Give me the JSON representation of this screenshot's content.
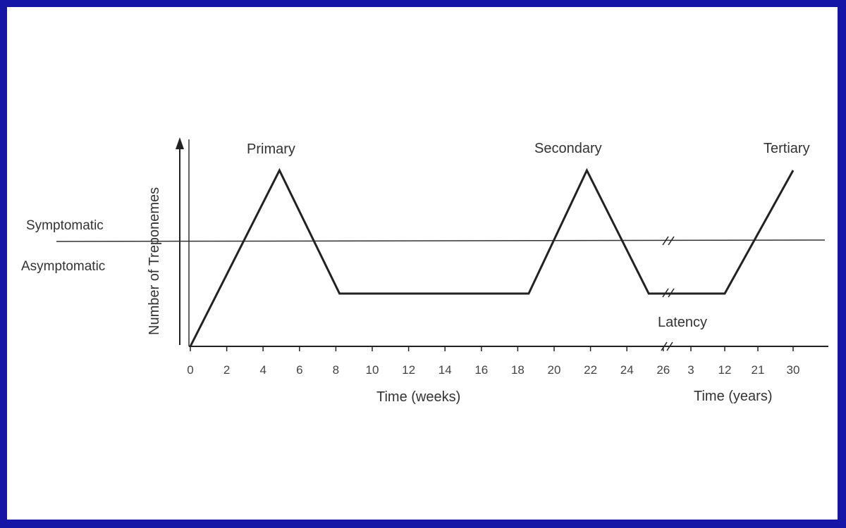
{
  "chart_data": {
    "type": "line",
    "title": "",
    "ylabel": "Number of Treponemes",
    "xlabels": [
      "Time  (weeks)",
      "Time  (years)"
    ],
    "weeks_ticks": [
      "0",
      "2",
      "4",
      "6",
      "8",
      "10",
      "12",
      "14",
      "16",
      "18",
      "20",
      "22",
      "24",
      "26"
    ],
    "years_ticks": [
      "3",
      "12",
      "21",
      "30"
    ],
    "threshold": {
      "above_label": "Symptomatic",
      "below_label": "Asymptomatic"
    },
    "phase_labels": [
      "Primary",
      "Secondary",
      "Tertiary"
    ],
    "latency_label": "Latency",
    "grid": false,
    "series": [
      {
        "points": [
          {
            "segment": "weeks",
            "x": 0,
            "y": 0
          },
          {
            "segment": "weeks",
            "x": 4.9,
            "y": 1.0
          },
          {
            "segment": "weeks",
            "x": 8.2,
            "y": 0.3
          },
          {
            "segment": "weeks",
            "x": 18.6,
            "y": 0.3
          },
          {
            "segment": "weeks",
            "x": 21.8,
            "y": 1.0
          },
          {
            "segment": "weeks",
            "x": 25.2,
            "y": 0.3
          },
          {
            "segment": "years",
            "x": 12,
            "y": 0.3
          },
          {
            "segment": "years",
            "x": 30,
            "y": 1.0
          }
        ],
        "threshold_y": 0.6
      }
    ]
  }
}
